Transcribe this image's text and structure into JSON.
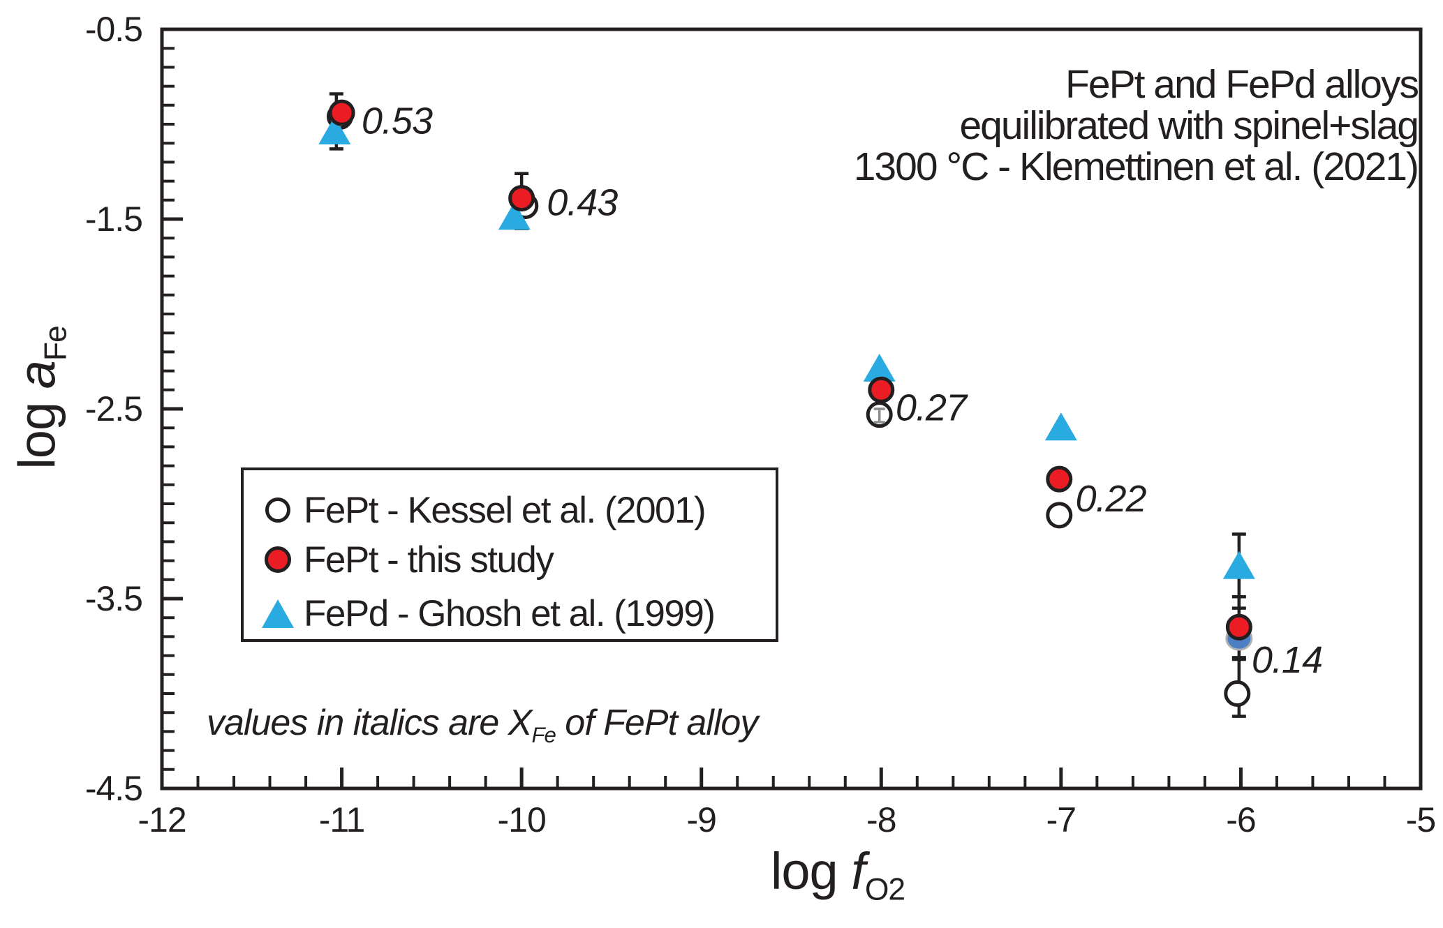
{
  "figure": {
    "title_lines": [
      "FePt and FePd alloys",
      "equilibrated with spinel+slag",
      "1300 °C - Klemettinen et al. (2021)"
    ],
    "note": {
      "pre": "values in italics are X",
      "sub": "Fe",
      "post": " of FePt alloy"
    },
    "legend": {
      "items": [
        {
          "marker": "open-circle",
          "label": "FePt - Kessel et al. (2001)"
        },
        {
          "marker": "red-circle",
          "label": "FePt - this study"
        },
        {
          "marker": "blue-triangle",
          "label": "FePd - Ghosh et al. (1999)"
        }
      ]
    },
    "x_axis": {
      "label_pre": "log ",
      "label_italic": "f",
      "label_sub": "O2"
    },
    "y_axis": {
      "label_pre": "log ",
      "label_italic": "a",
      "label_sub": "Fe"
    }
  },
  "colors": {
    "ink": "#231f20",
    "red": "#ec1c24",
    "blue": "#29abe2",
    "shadow_blue": "#4d7fc4",
    "gray_bar": "#8d8d8d"
  },
  "chart_data": {
    "type": "scatter",
    "title": "FePt and FePd alloys equilibrated with spinel+slag, 1300 °C - Klemettinen et al. (2021)",
    "xlabel": "log fO2",
    "ylabel": "log aFe",
    "xlim": [
      -12,
      -5
    ],
    "ylim": [
      -4.5,
      -0.5
    ],
    "x_tick_labels": [
      "-12",
      "-11",
      "-10",
      "-9",
      "-8",
      "-7",
      "-6",
      "-5"
    ],
    "y_tick_labels": [
      "-0.5",
      "-1.5",
      "-2.5",
      "-3.5",
      "-4.5"
    ],
    "x_major_ticks": [
      -12,
      -11,
      -10,
      -9,
      -8,
      -7,
      -6,
      -5
    ],
    "y_major_ticks": [
      -0.5,
      -1.5,
      -2.5,
      -3.5,
      -4.5
    ],
    "x_minor_step": 0.2,
    "y_minor_step": 0.1,
    "grid": false,
    "legend_position": "center-left",
    "series": [
      {
        "name": "FePt - Kessel et al. (2001)",
        "marker": "open-circle",
        "points": [
          {
            "x": -11.01,
            "y": -0.96
          },
          {
            "x": -9.98,
            "y": -1.43
          },
          {
            "x": -8.01,
            "y": -2.53
          },
          {
            "x": -7.01,
            "y": -3.06
          },
          {
            "x": -6.02,
            "y": -4.0
          }
        ]
      },
      {
        "name": "FePt - this study",
        "marker": "red-circle",
        "points": [
          {
            "x": -11.0,
            "y": -0.94
          },
          {
            "x": -10.0,
            "y": -1.39
          },
          {
            "x": -8.0,
            "y": -2.4
          },
          {
            "x": -7.01,
            "y": -2.87
          },
          {
            "x": -6.01,
            "y": -3.65
          }
        ]
      },
      {
        "name": "FePd - Ghosh et al. (1999)",
        "marker": "blue-triangle",
        "points": [
          {
            "x": -11.04,
            "y": -1.04
          },
          {
            "x": -10.04,
            "y": -1.49
          },
          {
            "x": -8.01,
            "y": -2.29
          },
          {
            "x": -7.0,
            "y": -2.6
          },
          {
            "x": -6.01,
            "y": -3.33
          }
        ]
      }
    ],
    "hidden_overlap_points": [
      {
        "x": -6.01,
        "y": -3.71,
        "note": "partially hidden blue marker behind red circle"
      }
    ],
    "error_bars": [
      {
        "x": -11.03,
        "lo": -1.13,
        "hi": -0.84,
        "style": "black"
      },
      {
        "x": -10.0,
        "lo": -1.55,
        "hi": -1.26,
        "style": "black"
      },
      {
        "x": -6.01,
        "lo": -3.55,
        "hi": -3.16,
        "style": "black"
      },
      {
        "x": -6.01,
        "lo": -3.82,
        "hi": -3.49,
        "style": "black"
      },
      {
        "x": -6.01,
        "lo": -4.12,
        "hi": -3.81,
        "style": "black"
      },
      {
        "x": -8.01,
        "lo": -2.57,
        "hi": -2.5,
        "style": "gray-above"
      }
    ],
    "point_labels": [
      {
        "text": "0.53",
        "x": -10.89,
        "y": -0.98
      },
      {
        "text": "0.43",
        "x": -9.86,
        "y": -1.41
      },
      {
        "text": "0.27",
        "x": -7.92,
        "y": -2.49
      },
      {
        "text": "0.22",
        "x": -6.92,
        "y": -2.97
      },
      {
        "text": "0.14",
        "x": -5.94,
        "y": -3.82
      }
    ],
    "point_labels_meaning": "X_Fe of FePt alloy"
  }
}
